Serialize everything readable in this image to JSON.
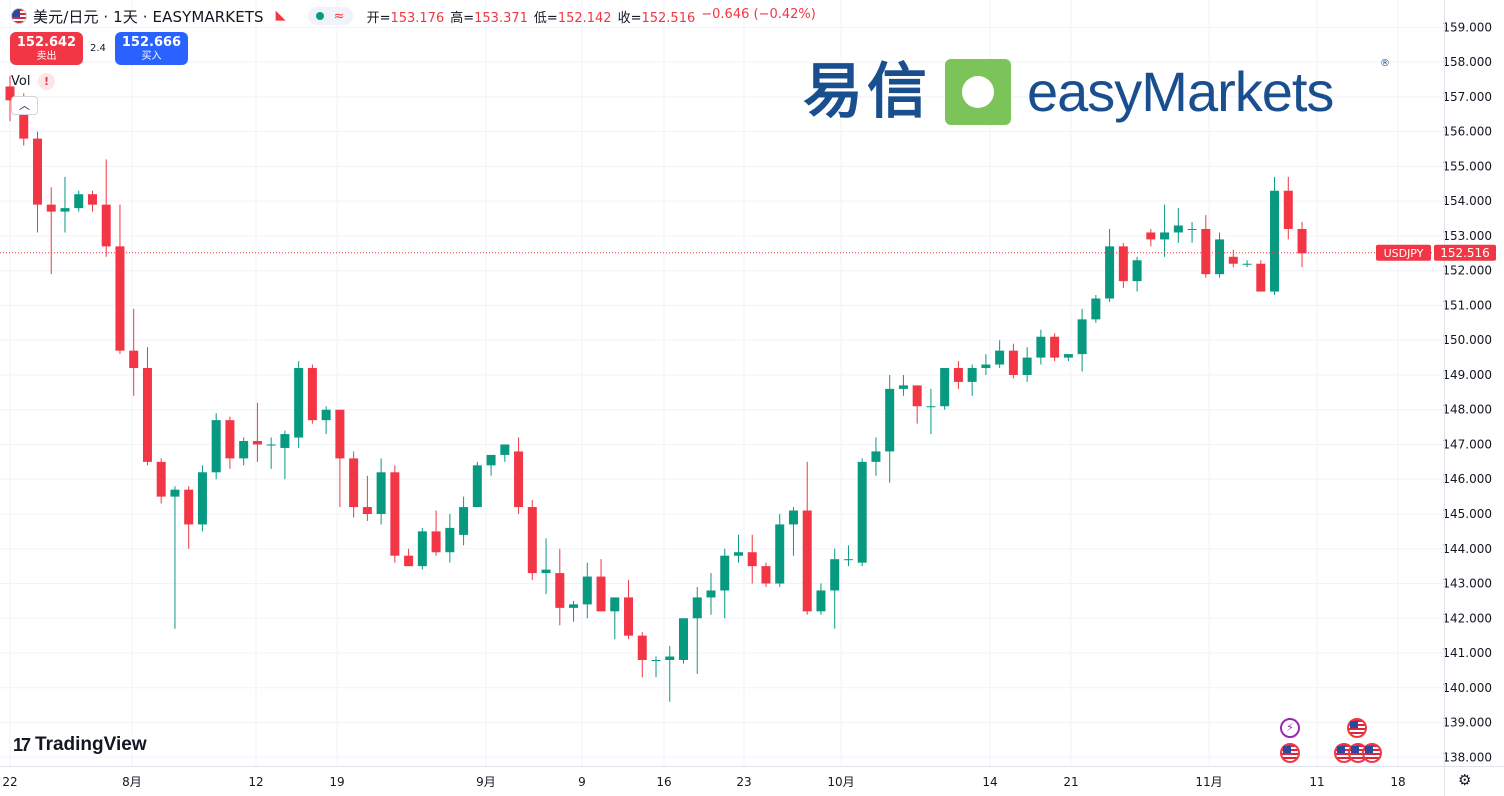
{
  "header": {
    "symbol_title": "美元/日元 · 1天 · EASYMARKETS",
    "open_label": "开=",
    "open": "153.176",
    "high_label": "高=",
    "high": "153.371",
    "low_label": "低=",
    "low": "152.142",
    "close_label": "收=",
    "close": "152.516",
    "change": "−0.646 (−0.42%)",
    "approx_glyph": "≈"
  },
  "trade": {
    "sell_price": "152.642",
    "sell_label": "卖出",
    "spread": "2.4",
    "buy_price": "152.666",
    "buy_label": "买入"
  },
  "indicator": {
    "vol_label": "Vol",
    "warn_glyph": "!",
    "collapse_glyph": "︿"
  },
  "logo": {
    "cn": "易信",
    "en": "easyMarkets",
    "registered": "®"
  },
  "branding": {
    "tv_mark": "17",
    "tv_text": "TradingView"
  },
  "price_tag": {
    "symbol": "USDJPY",
    "price": "152.516"
  },
  "icons": {
    "symbol_flag": "us-flag-icon",
    "bolt": "⚡",
    "settings": "⚙"
  },
  "colors": {
    "up": "#089981",
    "down": "#f23645",
    "grid": "#f0f3fa",
    "axis_text": "#131722"
  },
  "chart_data": {
    "type": "candlestick",
    "title": "美元/日元 · 1天 · EASYMARKETS",
    "ylim": [
      137.75,
      159.5
    ],
    "yticks": [
      "159.000",
      "158.000",
      "157.000",
      "156.000",
      "155.000",
      "154.000",
      "153.000",
      "152.000",
      "151.000",
      "150.000",
      "149.000",
      "148.000",
      "147.000",
      "146.000",
      "145.000",
      "144.000",
      "143.000",
      "142.000",
      "141.000",
      "140.000",
      "139.000",
      "138.000"
    ],
    "xticks": [
      "22",
      "8月",
      "12",
      "19",
      "9月",
      "9",
      "16",
      "23",
      "10月",
      "14",
      "21",
      "11月",
      "11",
      "18"
    ],
    "candles": [
      {
        "o": 157.3,
        "h": 157.6,
        "l": 156.3,
        "c": 156.9
      },
      {
        "o": 156.8,
        "h": 157.1,
        "l": 155.6,
        "c": 155.8
      },
      {
        "o": 155.8,
        "h": 156.0,
        "l": 153.1,
        "c": 153.9
      },
      {
        "o": 153.9,
        "h": 154.4,
        "l": 151.9,
        "c": 153.7
      },
      {
        "o": 153.7,
        "h": 154.7,
        "l": 153.1,
        "c": 153.8
      },
      {
        "o": 153.8,
        "h": 154.3,
        "l": 153.7,
        "c": 154.2
      },
      {
        "o": 154.2,
        "h": 154.3,
        "l": 153.7,
        "c": 153.9
      },
      {
        "o": 153.9,
        "h": 155.2,
        "l": 152.4,
        "c": 152.7
      },
      {
        "o": 152.7,
        "h": 153.9,
        "l": 149.6,
        "c": 149.7
      },
      {
        "o": 149.7,
        "h": 150.9,
        "l": 148.4,
        "c": 149.2
      },
      {
        "o": 149.2,
        "h": 149.8,
        "l": 146.4,
        "c": 146.5
      },
      {
        "o": 146.5,
        "h": 146.6,
        "l": 145.3,
        "c": 145.5
      },
      {
        "o": 145.5,
        "h": 145.8,
        "l": 141.7,
        "c": 145.7
      },
      {
        "o": 145.7,
        "h": 145.8,
        "l": 144.0,
        "c": 144.7
      },
      {
        "o": 144.7,
        "h": 146.4,
        "l": 144.5,
        "c": 146.2
      },
      {
        "o": 146.2,
        "h": 147.9,
        "l": 146.0,
        "c": 147.7
      },
      {
        "o": 147.7,
        "h": 147.8,
        "l": 146.3,
        "c": 146.6
      },
      {
        "o": 146.6,
        "h": 147.2,
        "l": 146.4,
        "c": 147.1
      },
      {
        "o": 147.1,
        "h": 148.2,
        "l": 146.5,
        "c": 147.0
      },
      {
        "o": 147.0,
        "h": 147.2,
        "l": 146.3,
        "c": 147.0
      },
      {
        "o": 146.9,
        "h": 147.4,
        "l": 146.0,
        "c": 147.3
      },
      {
        "o": 147.2,
        "h": 149.4,
        "l": 146.9,
        "c": 149.2
      },
      {
        "o": 149.2,
        "h": 149.3,
        "l": 147.6,
        "c": 147.7
      },
      {
        "o": 147.7,
        "h": 148.1,
        "l": 147.3,
        "c": 148.0
      },
      {
        "o": 148.0,
        "h": 148.0,
        "l": 145.2,
        "c": 146.6
      },
      {
        "o": 146.6,
        "h": 146.8,
        "l": 144.9,
        "c": 145.2
      },
      {
        "o": 145.2,
        "h": 146.1,
        "l": 144.8,
        "c": 145.0
      },
      {
        "o": 145.0,
        "h": 146.6,
        "l": 144.7,
        "c": 146.2
      },
      {
        "o": 146.2,
        "h": 146.4,
        "l": 143.6,
        "c": 143.8
      },
      {
        "o": 143.8,
        "h": 144.0,
        "l": 143.5,
        "c": 143.5
      },
      {
        "o": 143.5,
        "h": 144.6,
        "l": 143.4,
        "c": 144.5
      },
      {
        "o": 144.5,
        "h": 145.1,
        "l": 143.8,
        "c": 143.9
      },
      {
        "o": 143.9,
        "h": 145.0,
        "l": 143.6,
        "c": 144.6
      },
      {
        "o": 144.4,
        "h": 145.5,
        "l": 144.1,
        "c": 145.2
      },
      {
        "o": 145.2,
        "h": 146.5,
        "l": 145.2,
        "c": 146.4
      },
      {
        "o": 146.4,
        "h": 146.6,
        "l": 146.1,
        "c": 146.7
      },
      {
        "o": 146.7,
        "h": 147.0,
        "l": 146.5,
        "c": 147.0
      },
      {
        "o": 146.8,
        "h": 147.2,
        "l": 145.0,
        "c": 145.2
      },
      {
        "o": 145.2,
        "h": 145.4,
        "l": 143.1,
        "c": 143.3
      },
      {
        "o": 143.3,
        "h": 144.3,
        "l": 142.7,
        "c": 143.4
      },
      {
        "o": 143.3,
        "h": 144.0,
        "l": 141.8,
        "c": 142.3
      },
      {
        "o": 142.3,
        "h": 142.5,
        "l": 141.9,
        "c": 142.4
      },
      {
        "o": 142.4,
        "h": 143.6,
        "l": 142.0,
        "c": 143.2
      },
      {
        "o": 143.2,
        "h": 143.7,
        "l": 142.2,
        "c": 142.2
      },
      {
        "o": 142.2,
        "h": 142.6,
        "l": 141.4,
        "c": 142.6
      },
      {
        "o": 142.6,
        "h": 143.1,
        "l": 141.4,
        "c": 141.5
      },
      {
        "o": 141.5,
        "h": 141.6,
        "l": 140.3,
        "c": 140.8
      },
      {
        "o": 140.8,
        "h": 140.9,
        "l": 140.3,
        "c": 140.8
      },
      {
        "o": 140.8,
        "h": 141.2,
        "l": 139.6,
        "c": 140.9
      },
      {
        "o": 140.8,
        "h": 142.0,
        "l": 140.7,
        "c": 142.0
      },
      {
        "o": 142.0,
        "h": 142.9,
        "l": 140.4,
        "c": 142.6
      },
      {
        "o": 142.6,
        "h": 143.3,
        "l": 142.1,
        "c": 142.8
      },
      {
        "o": 142.8,
        "h": 144.0,
        "l": 142.0,
        "c": 143.8
      },
      {
        "o": 143.8,
        "h": 144.4,
        "l": 143.6,
        "c": 143.9
      },
      {
        "o": 143.9,
        "h": 144.4,
        "l": 143.0,
        "c": 143.5
      },
      {
        "o": 143.5,
        "h": 143.6,
        "l": 142.9,
        "c": 143.0
      },
      {
        "o": 143.0,
        "h": 145.0,
        "l": 142.9,
        "c": 144.7
      },
      {
        "o": 144.7,
        "h": 145.2,
        "l": 143.8,
        "c": 145.1
      },
      {
        "o": 145.1,
        "h": 146.5,
        "l": 142.1,
        "c": 142.2
      },
      {
        "o": 142.2,
        "h": 143.0,
        "l": 142.1,
        "c": 142.8
      },
      {
        "o": 142.8,
        "h": 144.0,
        "l": 141.7,
        "c": 143.7
      },
      {
        "o": 143.7,
        "h": 144.1,
        "l": 143.5,
        "c": 143.7
      },
      {
        "o": 143.6,
        "h": 146.6,
        "l": 143.5,
        "c": 146.5
      },
      {
        "o": 146.5,
        "h": 147.2,
        "l": 146.1,
        "c": 146.8
      },
      {
        "o": 146.8,
        "h": 149.0,
        "l": 145.9,
        "c": 148.6
      },
      {
        "o": 148.6,
        "h": 149.0,
        "l": 148.4,
        "c": 148.7
      },
      {
        "o": 148.7,
        "h": 148.7,
        "l": 147.6,
        "c": 148.1
      },
      {
        "o": 148.1,
        "h": 148.6,
        "l": 147.3,
        "c": 148.1
      },
      {
        "o": 148.1,
        "h": 149.2,
        "l": 148.0,
        "c": 149.2
      },
      {
        "o": 149.2,
        "h": 149.4,
        "l": 148.6,
        "c": 148.8
      },
      {
        "o": 148.8,
        "h": 149.3,
        "l": 148.4,
        "c": 149.2
      },
      {
        "o": 149.2,
        "h": 149.6,
        "l": 149.0,
        "c": 149.3
      },
      {
        "o": 149.3,
        "h": 150.0,
        "l": 149.2,
        "c": 149.7
      },
      {
        "o": 149.7,
        "h": 149.9,
        "l": 148.9,
        "c": 149.0
      },
      {
        "o": 149.0,
        "h": 149.8,
        "l": 148.8,
        "c": 149.5
      },
      {
        "o": 149.5,
        "h": 150.3,
        "l": 149.3,
        "c": 150.1
      },
      {
        "o": 150.1,
        "h": 150.2,
        "l": 149.4,
        "c": 149.5
      },
      {
        "o": 149.5,
        "h": 149.6,
        "l": 149.4,
        "c": 149.6
      },
      {
        "o": 149.6,
        "h": 150.9,
        "l": 149.1,
        "c": 150.6
      },
      {
        "o": 150.6,
        "h": 151.3,
        "l": 150.5,
        "c": 151.2
      },
      {
        "o": 151.2,
        "h": 153.2,
        "l": 151.1,
        "c": 152.7
      },
      {
        "o": 152.7,
        "h": 152.8,
        "l": 151.5,
        "c": 151.7
      },
      {
        "o": 151.7,
        "h": 152.4,
        "l": 151.4,
        "c": 152.3
      },
      {
        "o": 153.1,
        "h": 153.2,
        "l": 152.7,
        "c": 152.9
      },
      {
        "o": 152.9,
        "h": 153.9,
        "l": 152.4,
        "c": 153.1
      },
      {
        "o": 153.1,
        "h": 153.8,
        "l": 152.8,
        "c": 153.3
      },
      {
        "o": 153.2,
        "h": 153.4,
        "l": 152.8,
        "c": 153.2
      },
      {
        "o": 153.2,
        "h": 153.6,
        "l": 151.8,
        "c": 151.9
      },
      {
        "o": 151.9,
        "h": 153.1,
        "l": 151.8,
        "c": 152.9
      },
      {
        "o": 152.4,
        "h": 152.6,
        "l": 152.1,
        "c": 152.2
      },
      {
        "o": 152.2,
        "h": 152.3,
        "l": 152.1,
        "c": 152.2
      },
      {
        "o": 152.2,
        "h": 152.3,
        "l": 151.4,
        "c": 151.4
      },
      {
        "o": 151.4,
        "h": 154.7,
        "l": 151.3,
        "c": 154.3
      },
      {
        "o": 154.3,
        "h": 154.7,
        "l": 152.9,
        "c": 153.2
      },
      {
        "o": 153.2,
        "h": 153.4,
        "l": 152.1,
        "c": 152.5
      }
    ]
  }
}
